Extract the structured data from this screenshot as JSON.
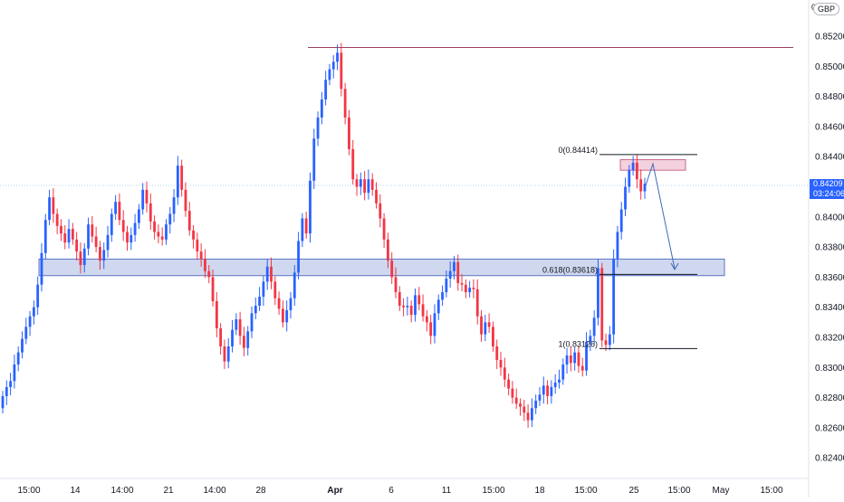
{
  "symbol": {
    "currency": "GBP",
    "top_axis_label": "0"
  },
  "price_axis": {
    "ticks": [
      "0.85200",
      "0.85000",
      "0.84800",
      "0.84600",
      "0.84400",
      "0.84000",
      "0.83800",
      "0.83600",
      "0.83400",
      "0.83200",
      "0.83000",
      "0.82800",
      "0.82600",
      "0.82400"
    ],
    "current_price": "0.84209",
    "countdown": "03:24:06"
  },
  "time_axis": {
    "ticks": [
      "15:00",
      "14",
      "14:00",
      "21",
      "14:00",
      "28",
      "Apr",
      "6",
      "11",
      "15:00",
      "18",
      "15:00",
      "25",
      "15:00",
      "May",
      "15:00"
    ]
  },
  "fib_levels": [
    {
      "label": "0(0.84414)",
      "value": 0.84414
    },
    {
      "label": "0.618(0.83618)",
      "value": 0.83618
    },
    {
      "label": "1(0.83126)",
      "value": 0.83126
    }
  ],
  "resistance_level": 0.85125,
  "support_zone": {
    "top": 0.8372,
    "bottom": 0.8361
  },
  "supply_zone": {
    "top": 0.8438,
    "bottom": 0.8431
  },
  "colors": {
    "up": "#2962ff",
    "down": "#f23645",
    "zone_fill": "#a8b8e0",
    "zone_border": "#5b75c4",
    "supply_fill": "#f0c6d6",
    "supply_border": "#c8688f",
    "resistance": "#9c3d64",
    "fib_line": "#131722",
    "arrow": "#3d6ab8",
    "price_line": "#b0d4ef"
  },
  "candles_close": [
    0.8281,
    0.8287,
    0.8291,
    0.8302,
    0.831,
    0.8319,
    0.8327,
    0.8334,
    0.834,
    0.8355,
    0.8376,
    0.8398,
    0.8413,
    0.8402,
    0.8394,
    0.8389,
    0.8383,
    0.8392,
    0.8385,
    0.8377,
    0.8368,
    0.8379,
    0.8395,
    0.8387,
    0.838,
    0.8371,
    0.8378,
    0.8388,
    0.8402,
    0.841,
    0.8398,
    0.839,
    0.8383,
    0.8388,
    0.8396,
    0.8405,
    0.8418,
    0.8409,
    0.8397,
    0.839,
    0.8387,
    0.8385,
    0.8395,
    0.8402,
    0.8413,
    0.8434,
    0.8418,
    0.8404,
    0.8391,
    0.8385,
    0.8377,
    0.8372,
    0.8364,
    0.836,
    0.8344,
    0.8326,
    0.8314,
    0.8304,
    0.8314,
    0.8325,
    0.8332,
    0.8321,
    0.8313,
    0.8324,
    0.8336,
    0.8341,
    0.8347,
    0.8357,
    0.8367,
    0.8357,
    0.8346,
    0.8339,
    0.833,
    0.8338,
    0.8346,
    0.8363,
    0.8384,
    0.8399,
    0.8389,
    0.8424,
    0.8452,
    0.8466,
    0.8478,
    0.8491,
    0.8498,
    0.8503,
    0.8509,
    0.8485,
    0.8466,
    0.8445,
    0.8425,
    0.842,
    0.8425,
    0.8416,
    0.8425,
    0.8418,
    0.8409,
    0.8399,
    0.8385,
    0.8371,
    0.836,
    0.835,
    0.8341,
    0.834,
    0.8341,
    0.8335,
    0.8348,
    0.8342,
    0.8334,
    0.833,
    0.8321,
    0.8336,
    0.8345,
    0.835,
    0.8359,
    0.8364,
    0.837,
    0.8356,
    0.8355,
    0.835,
    0.8353,
    0.8352,
    0.8334,
    0.8322,
    0.833,
    0.8327,
    0.8314,
    0.8305,
    0.83,
    0.8292,
    0.8286,
    0.828,
    0.8276,
    0.8274,
    0.827,
    0.8265,
    0.8273,
    0.8278,
    0.8282,
    0.8288,
    0.8281,
    0.8287,
    0.829,
    0.8292,
    0.8302,
    0.8308,
    0.8303,
    0.831,
    0.8301,
    0.8298,
    0.8317,
    0.8321,
    0.8333,
    0.8366,
    0.8318,
    0.8315,
    0.8322,
    0.8372,
    0.839,
    0.8405,
    0.842,
    0.8431,
    0.8436,
    0.8425,
    0.8417,
    0.8422
  ]
}
